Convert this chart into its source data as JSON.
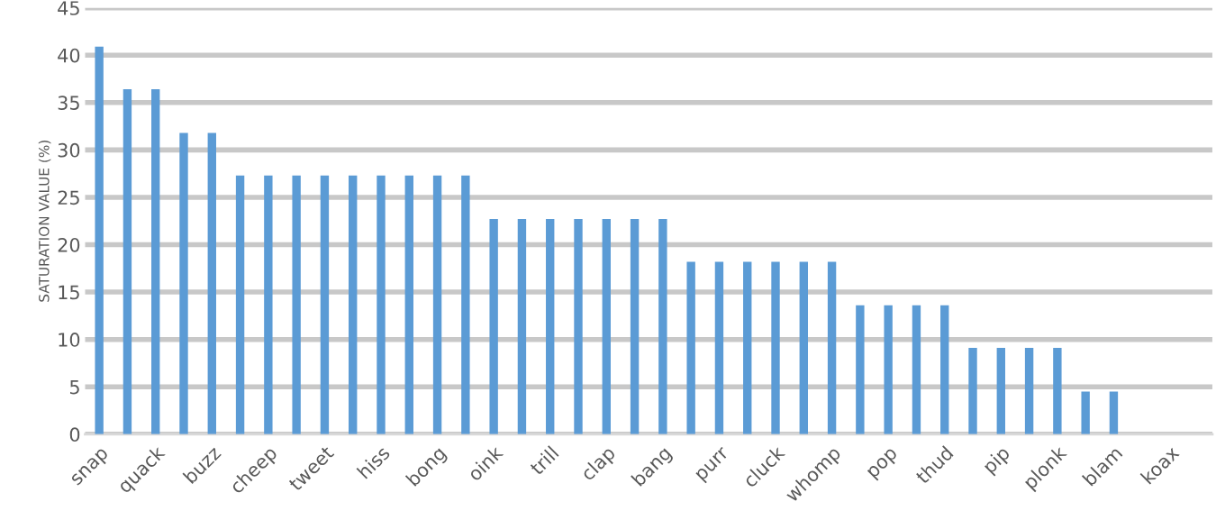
{
  "chart_data": {
    "type": "bar",
    "ylabel": "SATURATION VALUE (%)",
    "categories": [
      "snap",
      null,
      "quack",
      null,
      "buzz",
      null,
      "cheep",
      null,
      "tweet",
      null,
      "hiss",
      null,
      "bong",
      null,
      "oink",
      null,
      "trill",
      null,
      "clap",
      null,
      "bang",
      null,
      "purr",
      null,
      "cluck",
      null,
      "whomp",
      null,
      "pop",
      null,
      "thud",
      null,
      "pip",
      null,
      "plonk",
      null,
      "blam",
      null,
      "koax",
      null
    ],
    "values": [
      40.9,
      36.4,
      36.4,
      31.8,
      31.8,
      27.3,
      27.3,
      27.3,
      27.3,
      27.3,
      27.3,
      27.3,
      27.3,
      27.3,
      22.7,
      22.7,
      22.7,
      22.7,
      22.7,
      22.7,
      22.7,
      18.2,
      18.2,
      18.2,
      18.2,
      18.2,
      18.2,
      13.6,
      13.6,
      13.6,
      13.6,
      9.1,
      9.1,
      9.1,
      9.1,
      4.5,
      4.5,
      0,
      0,
      0
    ],
    "color": "#5b9bd5",
    "ylim": [
      0,
      45
    ],
    "yticks": [
      0,
      5,
      10,
      15,
      20,
      25,
      30,
      35,
      40,
      45
    ],
    "grid": "y"
  }
}
